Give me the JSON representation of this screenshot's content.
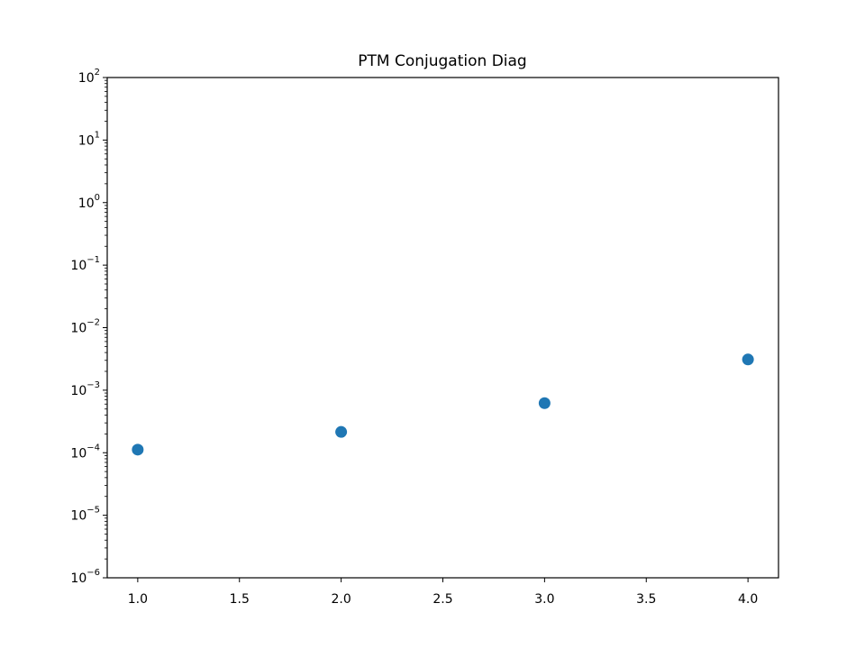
{
  "chart_data": {
    "type": "scatter",
    "title": "PTM Conjugation Diag",
    "xlabel": "",
    "ylabel": "",
    "x": [
      1.0,
      2.0,
      3.0,
      4.0
    ],
    "y": [
      0.000112,
      0.000215,
      0.00062,
      0.0031
    ],
    "xlim": [
      0.85,
      4.15
    ],
    "ylim": [
      1e-06,
      100
    ],
    "yscale": "log",
    "x_ticks": [
      1.0,
      1.5,
      2.0,
      2.5,
      3.0,
      3.5,
      4.0
    ],
    "x_tick_labels": [
      "1.0",
      "1.5",
      "2.0",
      "2.5",
      "3.0",
      "3.5",
      "4.0"
    ],
    "y_ticks": [
      {
        "value": 1e-06,
        "base": "10",
        "exp": "−6"
      },
      {
        "value": 1e-05,
        "base": "10",
        "exp": "−5"
      },
      {
        "value": 0.0001,
        "base": "10",
        "exp": "−4"
      },
      {
        "value": 0.001,
        "base": "10",
        "exp": "−3"
      },
      {
        "value": 0.01,
        "base": "10",
        "exp": "−2"
      },
      {
        "value": 0.1,
        "base": "10",
        "exp": "−1"
      },
      {
        "value": 1,
        "base": "10",
        "exp": "0"
      },
      {
        "value": 10,
        "base": "10",
        "exp": "1"
      },
      {
        "value": 100,
        "base": "10",
        "exp": "2"
      }
    ],
    "grid": false,
    "marker_color": "#1f77b4"
  }
}
